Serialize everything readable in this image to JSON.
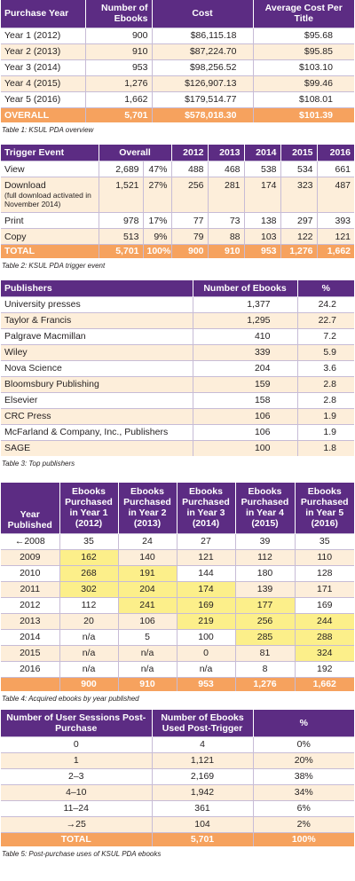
{
  "t1": {
    "headers": [
      "Purchase Year",
      "Number of Ebooks",
      "Cost",
      "Average Cost Per Title"
    ],
    "rows": [
      [
        "Year 1 (2012)",
        "900",
        "$86,115.18",
        "$95.68"
      ],
      [
        "Year 2 (2013)",
        "910",
        "$87,224.70",
        "$95.85"
      ],
      [
        "Year 3 (2014)",
        "953",
        "$98,256.52",
        "$103.10"
      ],
      [
        "Year 4 (2015)",
        "1,276",
        "$126,907.13",
        "$99.46"
      ],
      [
        "Year 5 (2016)",
        "1,662",
        "$179,514.77",
        "$108.01"
      ]
    ],
    "total": [
      "OVERALL",
      "5,701",
      "$578,018.30",
      "$101.39"
    ],
    "caption": "Table 1: KSUL PDA overview"
  },
  "t2": {
    "headers": [
      "Trigger Event",
      "Overall",
      "2012",
      "2013",
      "2014",
      "2015",
      "2016"
    ],
    "rows": [
      {
        "label": "View",
        "sub": "",
        "n": "2,689",
        "pct": "47%",
        "y": [
          "488",
          "468",
          "538",
          "534",
          "661"
        ]
      },
      {
        "label": "Download",
        "sub": "(full download activated in November 2014)",
        "n": "1,521",
        "pct": "27%",
        "y": [
          "256",
          "281",
          "174",
          "323",
          "487"
        ]
      },
      {
        "label": "Print",
        "sub": "",
        "n": "978",
        "pct": "17%",
        "y": [
          "77",
          "73",
          "138",
          "297",
          "393"
        ]
      },
      {
        "label": "Copy",
        "sub": "",
        "n": "513",
        "pct": "9%",
        "y": [
          "79",
          "88",
          "103",
          "122",
          "121"
        ]
      }
    ],
    "total": {
      "label": "TOTAL",
      "n": "5,701",
      "pct": "100%",
      "y": [
        "900",
        "910",
        "953",
        "1,276",
        "1,662"
      ]
    },
    "caption": "Table 2: KSUL PDA trigger event"
  },
  "t3": {
    "headers": [
      "Publishers",
      "Number of Ebooks",
      "%"
    ],
    "rows": [
      [
        "University presses",
        "1,377",
        "24.2"
      ],
      [
        "Taylor & Francis",
        "1,295",
        "22.7"
      ],
      [
        "Palgrave Macmillan",
        "410",
        "7.2"
      ],
      [
        "Wiley",
        "339",
        "5.9"
      ],
      [
        "Nova Science",
        "204",
        "3.6"
      ],
      [
        "Bloomsbury Publishing",
        "159",
        "2.8"
      ],
      [
        "Elsevier",
        "158",
        "2.8"
      ],
      [
        "CRC Press",
        "106",
        "1.9"
      ],
      [
        "McFarland & Company, Inc., Publishers",
        "106",
        "1.9"
      ],
      [
        "SAGE",
        "100",
        "1.8"
      ]
    ],
    "caption": "Table 3: Top publishers"
  },
  "t4": {
    "headers": [
      "Year Published",
      "Ebooks Purchased in Year 1 (2012)",
      "Ebooks Purchased in Year 2 (2013)",
      "Ebooks Purchased in Year 3 (2014)",
      "Ebooks Purchased in Year 4 (2015)",
      "Ebooks Purchased in Year 5 (2016)"
    ],
    "rows": [
      {
        "year": "←2008",
        "v": [
          "35",
          "24",
          "27",
          "39",
          "35"
        ],
        "hl": [
          0,
          0,
          0,
          0,
          0
        ]
      },
      {
        "year": "2009",
        "v": [
          "162",
          "140",
          "121",
          "112",
          "110"
        ],
        "hl": [
          1,
          0,
          0,
          0,
          0
        ]
      },
      {
        "year": "2010",
        "v": [
          "268",
          "191",
          "144",
          "180",
          "128"
        ],
        "hl": [
          1,
          1,
          0,
          0,
          0
        ]
      },
      {
        "year": "2011",
        "v": [
          "302",
          "204",
          "174",
          "139",
          "171"
        ],
        "hl": [
          1,
          1,
          1,
          0,
          0
        ]
      },
      {
        "year": "2012",
        "v": [
          "112",
          "241",
          "169",
          "177",
          "169"
        ],
        "hl": [
          0,
          1,
          1,
          1,
          0
        ]
      },
      {
        "year": "2013",
        "v": [
          "20",
          "106",
          "219",
          "256",
          "244"
        ],
        "hl": [
          0,
          0,
          1,
          1,
          1
        ]
      },
      {
        "year": "2014",
        "v": [
          "n/a",
          "5",
          "100",
          "285",
          "288"
        ],
        "hl": [
          0,
          0,
          0,
          1,
          1
        ]
      },
      {
        "year": "2015",
        "v": [
          "n/a",
          "n/a",
          "0",
          "81",
          "324"
        ],
        "hl": [
          0,
          0,
          0,
          0,
          1
        ]
      },
      {
        "year": "2016",
        "v": [
          "n/a",
          "n/a",
          "n/a",
          "8",
          "192"
        ],
        "hl": [
          0,
          0,
          0,
          0,
          0
        ]
      }
    ],
    "total": [
      "900",
      "910",
      "953",
      "1,276",
      "1,662"
    ],
    "caption": "Table 4: Acquired ebooks by year published"
  },
  "t5": {
    "headers": [
      "Number of User Sessions Post-Purchase",
      "Number of Ebooks Used Post-Trigger",
      "%"
    ],
    "rows": [
      [
        "0",
        "4",
        "0%"
      ],
      [
        "1",
        "1,121",
        "20%"
      ],
      [
        "2–3",
        "2,169",
        "38%"
      ],
      [
        "4–10",
        "1,942",
        "34%"
      ],
      [
        "11–24",
        "361",
        "6%"
      ],
      [
        "→25",
        "104",
        "2%"
      ]
    ],
    "total": [
      "TOTAL",
      "5,701",
      "100%"
    ],
    "caption": "Table 5: Post-purchase uses of KSUL PDA ebooks"
  },
  "colors": {
    "header": "#5c2c83",
    "total": "#f6a25e",
    "stripe": "#fdeeda",
    "highlight": "#fcef8a"
  }
}
